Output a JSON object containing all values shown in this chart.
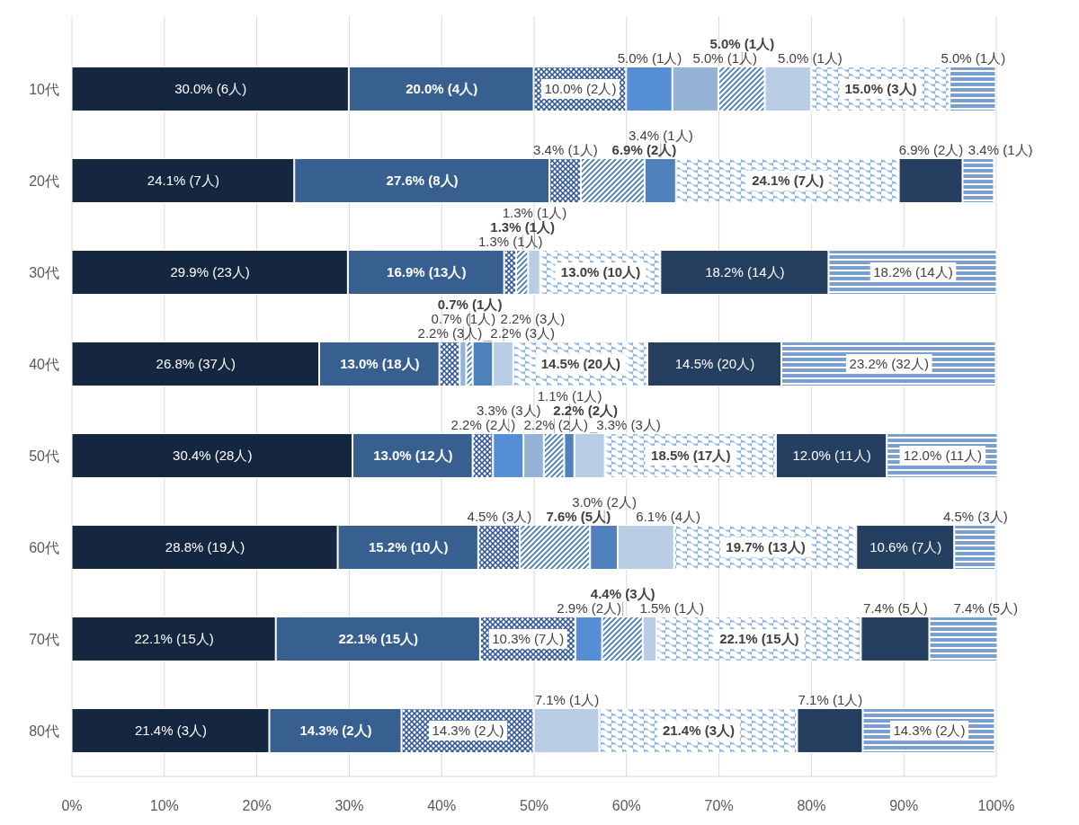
{
  "chart_data": {
    "type": "bar",
    "orientation": "horizontal",
    "stacked": true,
    "categories": [
      "10代",
      "20代",
      "30代",
      "40代",
      "50代",
      "60代",
      "70代",
      "80代"
    ],
    "xlim": [
      0,
      100
    ],
    "xticks": [
      {
        "value": 0,
        "label": "0%"
      },
      {
        "value": 10,
        "label": "10%"
      },
      {
        "value": 20,
        "label": "20%"
      },
      {
        "value": 30,
        "label": "30%"
      },
      {
        "value": 40,
        "label": "40%"
      },
      {
        "value": 50,
        "label": "50%"
      },
      {
        "value": 60,
        "label": "60%"
      },
      {
        "value": 70,
        "label": "70%"
      },
      {
        "value": 80,
        "label": "80%"
      },
      {
        "value": 90,
        "label": "90%"
      },
      {
        "value": 100,
        "label": "100%"
      }
    ],
    "grid": "x",
    "series": [
      {
        "color": "#142640",
        "values": [
          30.0,
          24.1,
          29.9,
          26.8,
          30.4,
          28.8,
          22.1,
          21.4
        ],
        "value_labels": [
          "30.0% (6人)",
          "24.1% (7人)",
          "29.9% (23人)",
          "26.8% (37人)",
          "30.4% (28人)",
          "28.8% (19人)",
          "22.1% (15人)",
          "21.4% (3人)"
        ]
      },
      {
        "color": "#375f8f",
        "values": [
          20.0,
          27.6,
          16.9,
          13.0,
          13.0,
          15.2,
          22.1,
          14.3
        ],
        "value_labels": [
          "20.0% (4人)",
          "27.6% (8人)",
          "16.9% (13人)",
          "13.0% (18人)",
          "13.0% (12人)",
          "15.2% (10人)",
          "22.1% (15人)",
          "14.3% (2人)"
        ]
      },
      {
        "color": "#2e5597",
        "values": [
          10.0,
          3.4,
          1.3,
          2.2,
          2.2,
          4.5,
          10.3,
          14.3
        ],
        "value_labels": [
          "10.0% (2人)",
          "3.4% (1人)",
          "1.3% (1人)",
          "2.2% (3人)",
          "2.2% (2人)",
          "4.5% (3人)",
          "10.3% (7人)",
          "14.3% (2人)"
        ]
      },
      {
        "color": "#558ed5",
        "values": [
          5.0,
          null,
          null,
          null,
          3.3,
          null,
          2.9,
          null
        ],
        "value_labels": [
          "5.0% (1人)",
          null,
          null,
          null,
          "3.3% (3人)",
          null,
          "2.9% (2人)",
          null
        ]
      },
      {
        "color": "#95b3d7",
        "values": [
          5.0,
          null,
          null,
          0.7,
          2.2,
          null,
          null,
          null
        ],
        "value_labels": [
          "5.0% (1人)",
          null,
          null,
          "0.7% (1人)",
          "2.2% (2人)",
          null,
          null,
          null
        ]
      },
      {
        "color": "#4a7ebb",
        "values": [
          5.0,
          6.9,
          1.3,
          0.7,
          2.2,
          7.6,
          4.4,
          null
        ],
        "value_labels": [
          "5.0% (1人)",
          "6.9% (2人)",
          "1.3% (1人)",
          "0.7% (1人)",
          "2.2% (2人)",
          "7.6% (5人)",
          "4.4% (3人)",
          null
        ]
      },
      {
        "color": "#4f81bd",
        "values": [
          null,
          3.4,
          null,
          2.2,
          1.1,
          3.0,
          null,
          null
        ],
        "value_labels": [
          null,
          "3.4% (1人)",
          null,
          "2.2% (3人)",
          "1.1% (1人)",
          "3.0% (2人)",
          null,
          null
        ]
      },
      {
        "color": "#b9cde5",
        "values": [
          5.0,
          null,
          1.3,
          2.2,
          3.3,
          6.1,
          1.5,
          7.1
        ],
        "value_labels": [
          "5.0% (1人)",
          null,
          "1.3% (1人)",
          "2.2% (3人)",
          "3.3% (3人)",
          "6.1% (4人)",
          "1.5% (1人)",
          "7.1% (1人)"
        ]
      },
      {
        "color": "#8eb4e3",
        "values": [
          15.0,
          24.1,
          13.0,
          14.5,
          18.5,
          19.7,
          22.1,
          21.4
        ],
        "value_labels": [
          "15.0% (3人)",
          "24.1% (7人)",
          "13.0% (10人)",
          "14.5% (20人)",
          "18.5% (17人)",
          "19.7% (13人)",
          "22.1% (15人)",
          "21.4% (3人)"
        ]
      },
      {
        "color": "#253f60",
        "values": [
          null,
          6.9,
          18.2,
          14.5,
          12.0,
          10.6,
          7.4,
          7.1
        ],
        "value_labels": [
          null,
          "6.9% (2人)",
          "18.2% (14人)",
          "14.5% (20人)",
          "12.0% (11人)",
          "10.6% (7人)",
          "7.4% (5人)",
          "7.1% (1人)"
        ]
      },
      {
        "color": "#7ba0cd",
        "values": [
          5.0,
          3.4,
          18.2,
          23.2,
          12.0,
          4.5,
          7.4,
          14.3
        ],
        "value_labels": [
          "5.0% (1人)",
          "3.4% (1人)",
          "18.2% (14人)",
          "23.2% (32人)",
          "12.0% (11人)",
          "4.5% (3人)",
          "7.4% (5人)",
          "14.3% (2人)"
        ]
      }
    ]
  }
}
